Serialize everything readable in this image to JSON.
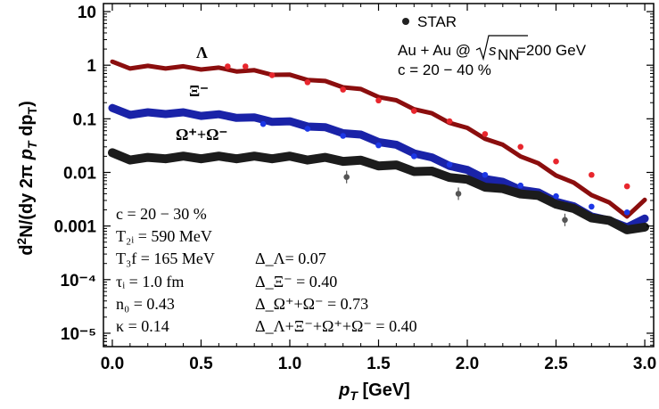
{
  "chart_data": {
    "type": "line",
    "ylog": true,
    "xlim": [
      -0.05,
      3.05
    ],
    "ylim_log10": [
      -5.25,
      1.15
    ],
    "xlabel": "p_T [GeV]",
    "ylabel": "d²N/(dy 2π p_T dp_T)",
    "x_ticks": [
      "0.0",
      "0.5",
      "1.0",
      "1.5",
      "2.0",
      "2.5",
      "3.0"
    ],
    "y_ticks": [
      "10",
      "1",
      "0.1",
      "0.01",
      "0.001",
      "10⁻⁴",
      "10⁻⁵"
    ],
    "series": [
      {
        "name": "Λ",
        "color": "#8b0e0e",
        "x": [
          0.0,
          0.1,
          0.2,
          0.3,
          0.4,
          0.5,
          0.6,
          0.7,
          0.8,
          0.9,
          1.0,
          1.1,
          1.2,
          1.3,
          1.4,
          1.5,
          1.6,
          1.7,
          1.8,
          1.9,
          2.0,
          2.1,
          2.2,
          2.3,
          2.4,
          2.5,
          2.6,
          2.7,
          2.8,
          2.9,
          3.0
        ],
        "y": [
          1.1,
          0.92,
          0.92,
          0.92,
          0.9,
          0.88,
          0.85,
          0.81,
          0.76,
          0.7,
          0.63,
          0.56,
          0.48,
          0.41,
          0.34,
          0.27,
          0.21,
          0.16,
          0.12,
          0.089,
          0.064,
          0.045,
          0.031,
          0.021,
          0.014,
          0.0093,
          0.0061,
          0.004,
          0.0026,
          0.0016,
          0.0029
        ]
      },
      {
        "name": "Ξ⁻",
        "color": "#1a23a8",
        "x": [
          0.0,
          0.1,
          0.2,
          0.3,
          0.4,
          0.5,
          0.6,
          0.7,
          0.8,
          0.9,
          1.0,
          1.1,
          1.2,
          1.3,
          1.4,
          1.5,
          1.6,
          1.7,
          1.8,
          1.9,
          2.0,
          2.1,
          2.2,
          2.3,
          2.4,
          2.5,
          2.6,
          2.7,
          2.8,
          2.9,
          3.0
        ],
        "y": [
          0.15,
          0.125,
          0.125,
          0.13,
          0.125,
          0.12,
          0.115,
          0.11,
          0.1,
          0.093,
          0.085,
          0.076,
          0.066,
          0.057,
          0.048,
          0.039,
          0.031,
          0.024,
          0.018,
          0.014,
          0.0105,
          0.008,
          0.0063,
          0.005,
          0.004,
          0.003,
          0.0022,
          0.0016,
          0.0012,
          0.001,
          0.0013
        ]
      },
      {
        "name": "Ω⁺+Ω⁻",
        "color": "#1c1c1c",
        "x": [
          0.0,
          0.1,
          0.2,
          0.3,
          0.4,
          0.5,
          0.6,
          0.7,
          0.8,
          0.9,
          1.0,
          1.1,
          1.2,
          1.3,
          1.4,
          1.5,
          1.6,
          1.7,
          1.8,
          1.9,
          2.0,
          2.1,
          2.2,
          2.3,
          2.4,
          2.5,
          2.6,
          2.7,
          2.8,
          2.9,
          3.0
        ],
        "y": [
          0.022,
          0.018,
          0.018,
          0.019,
          0.019,
          0.019,
          0.019,
          0.019,
          0.019,
          0.019,
          0.019,
          0.018,
          0.018,
          0.017,
          0.016,
          0.014,
          0.013,
          0.011,
          0.01,
          0.0085,
          0.007,
          0.0056,
          0.0047,
          0.0042,
          0.0035,
          0.0027,
          0.002,
          0.0015,
          0.0012,
          0.0009,
          0.0009
        ]
      },
      {
        "name": "STAR Λ",
        "color": "#e8262d",
        "marker": true,
        "x": [
          0.65,
          0.75,
          0.9,
          1.1,
          1.3,
          1.5,
          1.7,
          1.9,
          2.1,
          2.3,
          2.5,
          2.7,
          2.9
        ],
        "y": [
          0.95,
          0.95,
          0.65,
          0.48,
          0.35,
          0.22,
          0.14,
          0.09,
          0.052,
          0.03,
          0.016,
          0.009,
          0.0055
        ]
      },
      {
        "name": "STAR Ξ⁻",
        "color": "#1c37e6",
        "marker": true,
        "x": [
          0.85,
          1.1,
          1.3,
          1.5,
          1.7,
          1.9,
          2.1,
          2.3,
          2.5,
          2.7,
          2.9
        ],
        "y": [
          0.08,
          0.065,
          0.048,
          0.032,
          0.02,
          0.014,
          0.009,
          0.0057,
          0.0036,
          0.0023,
          0.0018
        ]
      },
      {
        "name": "STAR Ω⁺+Ω⁻",
        "color": "#555555",
        "marker": true,
        "x": [
          1.32,
          1.95,
          2.55
        ],
        "y": [
          0.0082,
          0.004,
          0.0013
        ]
      }
    ],
    "legend": {
      "marker_label": "STAR",
      "placement": "top-right"
    },
    "curve_labels": [
      "Λ",
      "Ξ⁻",
      "Ω⁺+Ω⁻"
    ]
  },
  "annotations": {
    "system_prefix": "Au + Au @ ",
    "system_sqrt": "s",
    "system_sub": "NN",
    "system_suffix": " =200 GeV",
    "centrality_top": "c = 20 − 40 %",
    "params_left": [
      "c  = 20 − 30 %",
      "T₂ᵢ = 590 MeV",
      "T₃f = 165 MeV",
      "τᵢ = 1.0 fm",
      "n₀ = 0.43",
      "κ  = 0.14"
    ],
    "params_right": [
      "Δ_Λ= 0.07",
      "Δ_Ξ⁻ = 0.40",
      "Δ_Ω⁺+Ω⁻ = 0.73",
      "Δ_Λ+Ξ⁻+Ω⁺+Ω⁻ = 0.40"
    ]
  }
}
